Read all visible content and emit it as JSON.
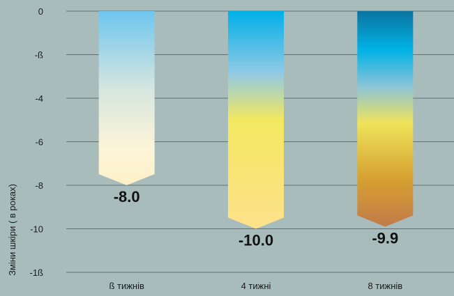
{
  "chart_data": {
    "type": "bar",
    "categories": [
      "ß тижнів",
      "4 тижні",
      "8 тижнів"
    ],
    "values": [
      -8.0,
      -10.0,
      -9.9
    ],
    "value_labels": [
      "-8.0",
      "-10.0",
      "-9.9"
    ],
    "ylabel": "Зміни шкіри ( в роках)",
    "y_ticks": [
      "0",
      "-ß",
      "-4",
      "-6",
      "-8",
      "-10",
      "-1ß"
    ],
    "y_tick_values": [
      0,
      -2,
      -4,
      -6,
      -8,
      -10,
      -12
    ],
    "ylim": [
      -12,
      0
    ],
    "grid": true,
    "colors": {
      "background": "#a9bcbc",
      "gridline": "#5f6f6f"
    },
    "bar_gradients": [
      [
        [
          "#6ec6ee",
          0
        ],
        [
          "#d7e6df",
          0.45
        ],
        [
          "#fdf5d8",
          0.8
        ],
        [
          "#fdf0c8",
          1
        ]
      ],
      [
        [
          "#00b0e8",
          0
        ],
        [
          "#8fc9e6",
          0.28
        ],
        [
          "#f2e860",
          0.5
        ],
        [
          "#fbe37a",
          0.8
        ],
        [
          "#fee28c",
          1
        ]
      ],
      [
        [
          "#0b74a0",
          0
        ],
        [
          "#00b2e5",
          0.18
        ],
        [
          "#8cc4d8",
          0.35
        ],
        [
          "#efe35a",
          0.52
        ],
        [
          "#d6a031",
          0.78
        ],
        [
          "#c27a4a",
          1
        ]
      ]
    ]
  }
}
